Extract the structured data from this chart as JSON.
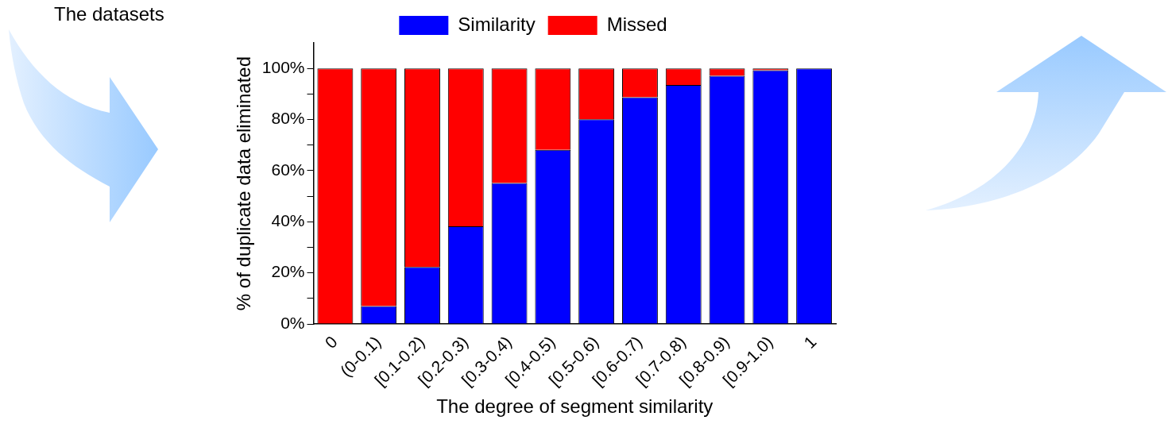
{
  "chart_data": {
    "type": "bar",
    "stacked": true,
    "xlabel": "The degree of segment similarity",
    "ylabel": "% of duplicate data eliminated",
    "annotations": [
      "The datasets"
    ],
    "categories": [
      "0",
      "(0-0.1)",
      "[0.1-0.2)",
      "[0.2-0.3)",
      "[0.3-0.4)",
      "[0.4-0.5)",
      "[0.5-0.6)",
      "[0.6-0.7)",
      "[0.7-0.8)",
      "[0.8-0.9)",
      "[0.9-1.0)",
      "1"
    ],
    "series": [
      {
        "name": "Similarity",
        "color": "#0000ff",
        "values": [
          0,
          7.0,
          22.3,
          38.2,
          55.2,
          68.1,
          80.1,
          88.7,
          93.5,
          97.1,
          99.3,
          100
        ]
      },
      {
        "name": "Missed",
        "color": "#ff0000",
        "values": [
          100,
          93.0,
          77.7,
          61.8,
          44.8,
          31.9,
          19.9,
          11.3,
          6.5,
          2.9,
          0.7,
          0
        ]
      }
    ],
    "ylim": [
      0,
      110
    ],
    "yticks": [
      {
        "value": 0,
        "label": "0%"
      },
      {
        "value": 10,
        "label": null
      },
      {
        "value": 20,
        "label": "20%"
      },
      {
        "value": 30,
        "label": null
      },
      {
        "value": 40,
        "label": "40%"
      },
      {
        "value": 50,
        "label": null
      },
      {
        "value": 60,
        "label": "60%"
      },
      {
        "value": 70,
        "label": null
      },
      {
        "value": 80,
        "label": "80%"
      },
      {
        "value": 90,
        "label": null
      },
      {
        "value": 100,
        "label": "100%"
      }
    ],
    "grid": false,
    "legend": "top"
  }
}
